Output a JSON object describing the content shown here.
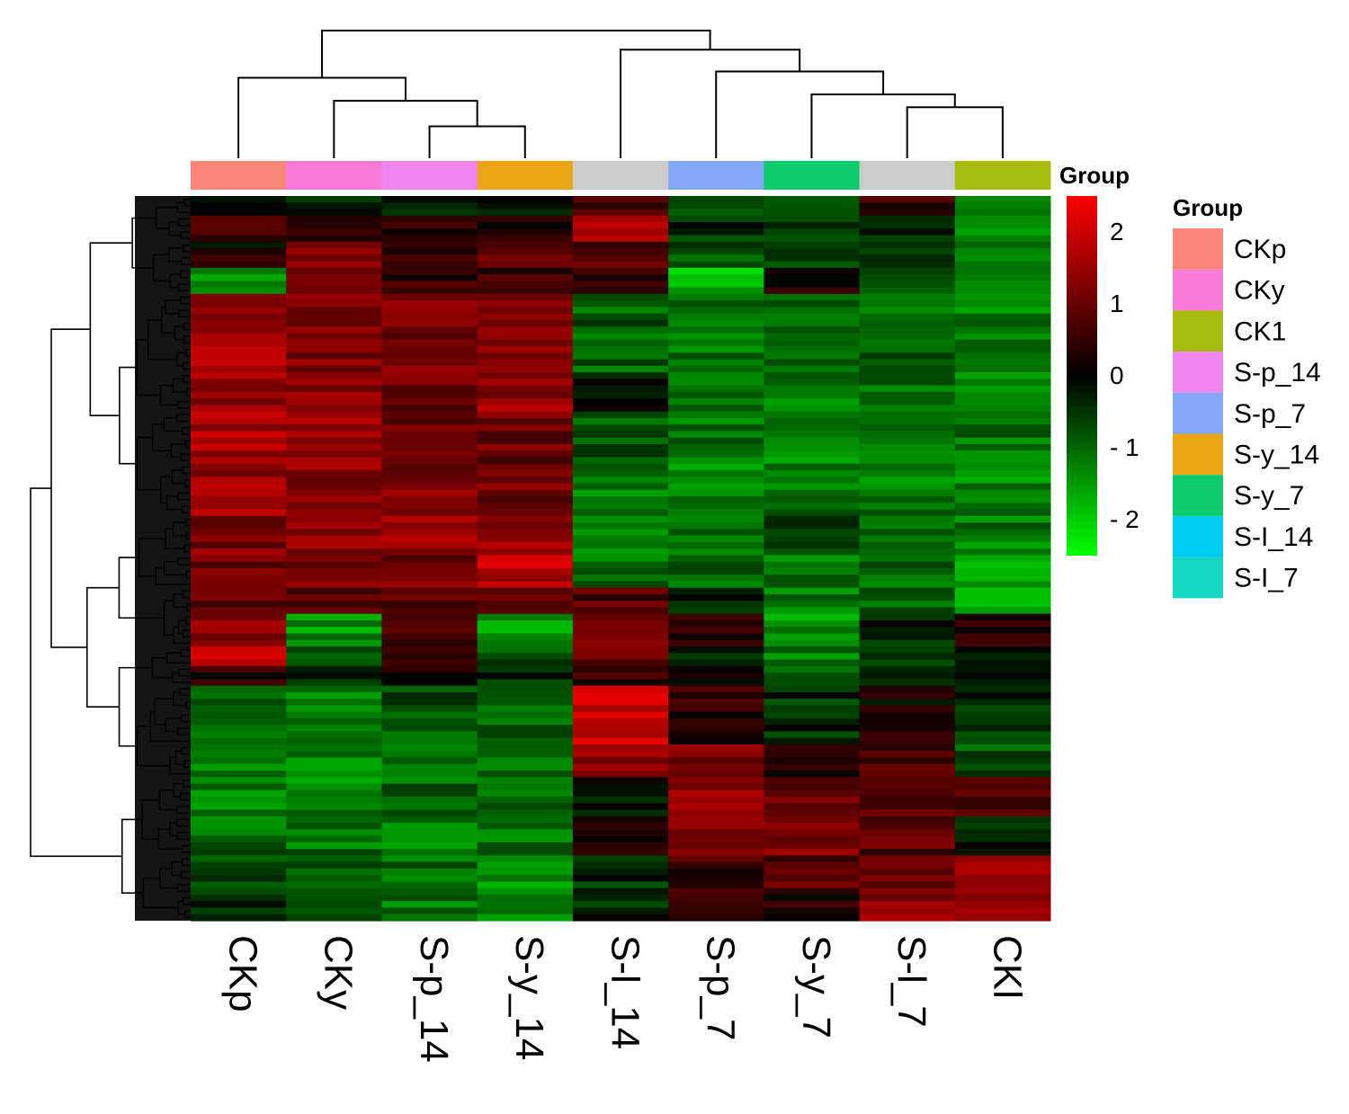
{
  "chart_data": {
    "type": "heatmap",
    "title": "",
    "columns": [
      "CKp",
      "CKy",
      "S-p_14",
      "S-y_14",
      "S-l_14",
      "S-p_7",
      "S-y_7",
      "S-l_7",
      "CKl"
    ],
    "column_groups": [
      "CKp",
      "CKy",
      "S-p_14",
      "S-y_14",
      "S-l_14",
      "S-p_7",
      "S-y_7",
      "S-l_7",
      "CK1"
    ],
    "annotation_track_label": "Group",
    "color_scale": {
      "min": -2.5,
      "max": 2.5,
      "ticks": [
        2,
        1,
        0,
        -1,
        -2
      ],
      "tick_labels": [
        "2",
        "1",
        "0",
        "- 1",
        "- 2"
      ],
      "low_color": "#00ff00",
      "mid_color": "#000000",
      "high_color": "#ff0000"
    },
    "legend": {
      "title": "Group",
      "entries": [
        {
          "label": "CKp",
          "color": "#f8877a"
        },
        {
          "label": "CKy",
          "color": "#f87ad8"
        },
        {
          "label": "CK1",
          "color": "#a8bc10"
        },
        {
          "label": "S-p_14",
          "color": "#ef86ef"
        },
        {
          "label": "S-p_7",
          "color": "#84a8f8"
        },
        {
          "label": "S-y_14",
          "color": "#eba616"
        },
        {
          "label": "S-y_7",
          "color": "#0ecb6e"
        },
        {
          "label": "S-I_14",
          "color": "#00ccf4"
        },
        {
          "label": "S-I_7",
          "color": "#15d8c2"
        }
      ]
    },
    "column_dendrogram": [
      [
        2,
        3
      ],
      [
        1,
        9
      ],
      [
        0,
        10
      ],
      [
        7,
        8
      ],
      [
        6,
        12
      ],
      [
        5,
        13
      ],
      [
        4,
        14
      ],
      [
        11,
        15
      ]
    ],
    "column_dendrogram_heights": [
      0.25,
      0.45,
      0.63,
      0.4,
      0.5,
      0.68,
      0.85,
      1.0
    ],
    "row_blocks": [
      {
        "n": 3,
        "values": [
          -0.3,
          -0.4,
          -0.2,
          -0.4,
          0.7,
          -0.8,
          -0.6,
          0.5,
          -1.5
        ]
      },
      {
        "n": 4,
        "values": [
          0.5,
          0.4,
          0.5,
          0.2,
          1.9,
          -0.4,
          -0.6,
          -0.3,
          -1.4
        ]
      },
      {
        "n": 4,
        "values": [
          0.2,
          1.3,
          0.7,
          0.8,
          0.7,
          -0.7,
          -0.6,
          -0.5,
          -1.3
        ]
      },
      {
        "n": 4,
        "values": [
          -1.5,
          0.9,
          0.4,
          0.6,
          0.3,
          -1.8,
          0.4,
          -0.6,
          -1.4
        ]
      },
      {
        "n": 12,
        "values": [
          1.5,
          1.3,
          1.1,
          1.2,
          -0.9,
          -1.1,
          -1.0,
          -1.0,
          -1.3
        ]
      },
      {
        "n": 6,
        "values": [
          1.4,
          1.3,
          1.1,
          1.4,
          -0.1,
          -1.1,
          -1.2,
          -1.0,
          -1.4
        ]
      },
      {
        "n": 8,
        "values": [
          1.6,
          1.6,
          0.9,
          1.0,
          -0.8,
          -1.2,
          -1.3,
          -1.1,
          -1.1
        ]
      },
      {
        "n": 8,
        "values": [
          1.5,
          1.4,
          1.2,
          1.1,
          -1.2,
          -1.3,
          -1.1,
          -1.2,
          -1.3
        ]
      },
      {
        "n": 6,
        "values": [
          1.2,
          1.3,
          1.6,
          1.5,
          -1.4,
          -1.0,
          -0.7,
          -1.0,
          -1.2
        ]
      },
      {
        "n": 5,
        "values": [
          1.1,
          1.2,
          1.2,
          1.8,
          -1.0,
          -1.0,
          -1.1,
          -1.0,
          -1.5
        ]
      },
      {
        "n": 4,
        "values": [
          0.9,
          0.9,
          0.8,
          0.9,
          0.8,
          -0.4,
          -1.3,
          -1.0,
          -1.7
        ]
      },
      {
        "n": 5,
        "values": [
          1.2,
          -1.4,
          0.5,
          -1.5,
          1.0,
          0.4,
          -1.4,
          -0.4,
          0.2
        ]
      },
      {
        "n": 3,
        "values": [
          1.9,
          -0.6,
          0.6,
          -0.8,
          1.1,
          -0.5,
          -1.2,
          -0.4,
          -0.3
        ]
      },
      {
        "n": 3,
        "values": [
          0.3,
          -0.5,
          0.2,
          -0.4,
          0.6,
          0.2,
          -1.0,
          -0.3,
          -0.5
        ]
      },
      {
        "n": 9,
        "values": [
          -0.9,
          -1.1,
          -0.8,
          -1.0,
          2.0,
          0.4,
          -0.4,
          0.2,
          -0.4
        ]
      },
      {
        "n": 5,
        "values": [
          -1.1,
          -1.2,
          -0.9,
          -1.0,
          1.5,
          1.2,
          0.3,
          0.7,
          -0.8
        ]
      },
      {
        "n": 6,
        "values": [
          -1.2,
          -1.3,
          -1.0,
          -1.1,
          -0.2,
          1.3,
          1.0,
          0.9,
          0.8
        ]
      },
      {
        "n": 6,
        "values": [
          -1.0,
          -1.1,
          -1.2,
          -1.1,
          0.3,
          1.1,
          1.3,
          0.8,
          -0.2
        ]
      },
      {
        "n": 6,
        "values": [
          -0.8,
          -1.0,
          -1.0,
          -1.4,
          -0.4,
          0.6,
          0.8,
          1.1,
          1.3
        ]
      },
      {
        "n": 4,
        "values": [
          -0.4,
          -0.7,
          -1.1,
          -1.2,
          -0.3,
          0.5,
          0.3,
          1.3,
          1.4
        ]
      }
    ]
  }
}
